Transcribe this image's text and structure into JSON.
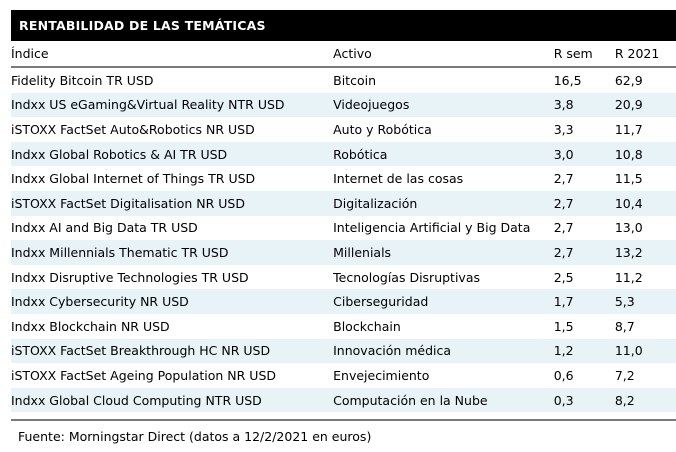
{
  "header": {
    "title": "RENTABILIDAD DE LAS TEMÁTICAS"
  },
  "chart_data": {
    "type": "table",
    "title": "RENTABILIDAD DE LAS TEMÁTICAS",
    "columns": [
      "Índice",
      "Activo",
      "R sem",
      "R 2021"
    ],
    "rows": [
      [
        "Fidelity Bitcoin TR USD",
        "Bitcoin",
        "16,5",
        "62,9"
      ],
      [
        "Indxx US eGaming&Virtual Reality NTR USD",
        "Videojuegos",
        "3,8",
        "20,9"
      ],
      [
        "iSTOXX FactSet Auto&Robotics NR USD",
        "Auto y Robótica",
        "3,3",
        "11,7"
      ],
      [
        "Indxx Global Robotics & AI TR USD",
        "Robótica",
        "3,0",
        "10,8"
      ],
      [
        "Indxx Global Internet of Things TR USD",
        "Internet de las cosas",
        "2,7",
        "11,5"
      ],
      [
        "iSTOXX FactSet Digitalisation NR USD",
        "Digitalización",
        "2,7",
        "10,4"
      ],
      [
        "Indxx AI and Big Data TR USD",
        "Inteligencia Artificial y Big Data",
        "2,7",
        "13,0"
      ],
      [
        "Indxx Millennials Thematic TR USD",
        "Millenials",
        "2,7",
        "13,2"
      ],
      [
        "Indxx Disruptive Technologies TR USD",
        "Tecnologías Disruptivas",
        "2,5",
        "11,2"
      ],
      [
        "Indxx Cybersecurity NR USD",
        "Ciberseguridad",
        "1,7",
        "5,3"
      ],
      [
        "Indxx Blockchain NR USD",
        "Blockchain",
        "1,5",
        "8,7"
      ],
      [
        "iSTOXX FactSet Breakthrough HC NR USD",
        "Innovación médica",
        "1,2",
        "11,0"
      ],
      [
        "iSTOXX FactSet Ageing Population NR USD",
        "Envejecimiento",
        "0,6",
        "7,2"
      ],
      [
        "Indxx Global Cloud Computing NTR USD",
        "Computación en la Nube",
        "0,3",
        "8,2"
      ]
    ],
    "source": "Fuente: Morningstar Direct (datos a 12/2/2021 en euros)",
    "layout": {
      "striped": true,
      "striped_rows": "even",
      "grid": "horizontal-rules-only",
      "numeric_columns_align": "right"
    }
  },
  "colors": {
    "title_bar_bg": "#000000",
    "title_bar_fg": "#ffffff",
    "stripe": "#e8f3f8",
    "rule": "#7a7a7a",
    "text": "#000000"
  }
}
